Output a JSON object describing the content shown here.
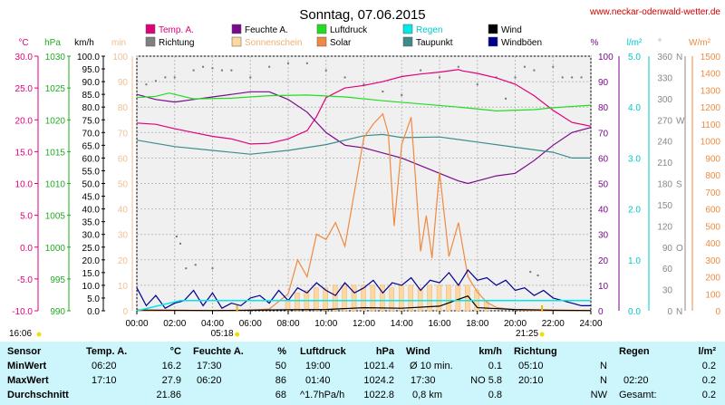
{
  "header": {
    "title": "Sonntag, 07.06.2015",
    "url": "www.neckar-odenwald-wetter.de"
  },
  "legend": [
    {
      "label": "Temp. A.",
      "color": "#e0007a"
    },
    {
      "label": "Feuchte A.",
      "color": "#7a0a8c"
    },
    {
      "label": "Luftdruck",
      "color": "#22dd22"
    },
    {
      "label": "Regen",
      "color": "#00e8e8"
    },
    {
      "label": "Wind",
      "color": "#000000"
    },
    {
      "label": "Richtung",
      "color": "#808080"
    },
    {
      "label": "Sonnenschein",
      "color": "#ffd8a0"
    },
    {
      "label": "Solar",
      "color": "#f08a40"
    },
    {
      "label": "Taupunkt",
      "color": "#3c8c8c"
    },
    {
      "label": "Windböen",
      "color": "#000090"
    }
  ],
  "axis_units": {
    "temp": "°C",
    "press": "hPa",
    "wind": "km/h",
    "sun": "min",
    "hum": "%",
    "rain": "l/m²",
    "dir": "°",
    "solar": "W/m²"
  },
  "axes": {
    "temp": [
      "-10.0",
      "-5.0",
      "0.0",
      "5.0",
      "10.0",
      "15.0",
      "20.0",
      "25.0",
      "30.0"
    ],
    "press": [
      "990",
      "995",
      "1000",
      "1005",
      "1010",
      "1015",
      "1020",
      "1025",
      "1030"
    ],
    "wind": [
      "0.0",
      "5.0",
      "10.0",
      "15.0",
      "20.0",
      "25.0",
      "30.0",
      "35.0",
      "40.0",
      "45.0",
      "50.0",
      "55.0",
      "60.0",
      "65.0",
      "70.0",
      "75.0",
      "80.0",
      "85.0",
      "90.0",
      "95.0",
      "100.0"
    ],
    "sun": [
      "0",
      "10",
      "20",
      "30",
      "40",
      "50",
      "60",
      "70",
      "80",
      "90",
      "100"
    ],
    "hum": [
      "0",
      "10",
      "20",
      "30",
      "40",
      "50",
      "60",
      "70",
      "80",
      "90",
      "100"
    ],
    "rain": [
      "0.0",
      "1.0",
      "2.0",
      "3.0",
      "4.0",
      "5.0"
    ],
    "dir": [
      "0",
      "30",
      "60",
      "90",
      "120",
      "150",
      "180",
      "210",
      "240",
      "270",
      "300",
      "330",
      "360"
    ],
    "dir_compass": {
      "0": "N",
      "90": "O",
      "180": "S",
      "270": "W",
      "360": "N"
    },
    "solar": [
      "0",
      "100",
      "200",
      "300",
      "400",
      "500",
      "600",
      "700",
      "800",
      "900",
      "1000",
      "1100",
      "1200",
      "1300",
      "1400",
      "1500"
    ]
  },
  "x_ticks": [
    "00:00",
    "02:00",
    "04:00",
    "06:00",
    "08:00",
    "10:00",
    "12:00",
    "14:00",
    "16:00",
    "18:00",
    "20:00",
    "22:00",
    "24:00"
  ],
  "markers": {
    "left": "16:06",
    "sunrise": "05:18",
    "sunset": "21:25"
  },
  "stats": {
    "header": {
      "sensor": "Sensor",
      "temp": "Temp. A.",
      "temp_u": "°C",
      "hum": "Feuchte A.",
      "hum_u": "%",
      "press": "Luftdruck",
      "press_u": "hPa",
      "wind": "Wind",
      "wind_u": "km/h",
      "dir": "Richtung",
      "rain": "Regen",
      "rain_u": "l/m²"
    },
    "min": {
      "label": "MinWert",
      "temp_t": "06:20",
      "temp_v": "16.2",
      "hum_t": "17:30",
      "hum_v": "50",
      "press_t": "19:00",
      "press_v": "1021.4",
      "wind_t": "Ø 10 min.",
      "wind_v": "0.1",
      "dir_t": "05:10",
      "dir_v": "N",
      "rain_t": "",
      "rain_v": "0.2"
    },
    "max": {
      "label": "MaxWert",
      "temp_t": "17:10",
      "temp_v": "27.9",
      "hum_t": "06:20",
      "hum_v": "86",
      "press_t": "01:40",
      "press_v": "1024.2",
      "wind_t": "17:30",
      "wind_v": "NO 5.8",
      "dir_t": "20:10",
      "dir_v": "N",
      "rain_t": "02:20",
      "rain_v": "0.2"
    },
    "avg": {
      "label": "Durchschnitt",
      "temp_v": "21.86",
      "hum_v": "68",
      "press_t": "^1.7hPa/h",
      "press_v": "1022.8",
      "wind_t": "0,8 km",
      "wind_v": "0.8",
      "dir_v": "NW",
      "rain_t": "Gesamt:",
      "rain_v": "0.2"
    }
  },
  "chart_data": {
    "type": "line",
    "x_unit": "hours",
    "x_range": [
      0,
      24
    ],
    "series": [
      {
        "name": "Temp. A.",
        "axis": "temp",
        "color": "#e0007a",
        "x": [
          0,
          1,
          2,
          3,
          4,
          5,
          6,
          7,
          8,
          9,
          9.5,
          10,
          11,
          12,
          13,
          14,
          15,
          16,
          17,
          17.2,
          18,
          19,
          20,
          21,
          22,
          23,
          24
        ],
        "y": [
          19.5,
          19.3,
          18.6,
          18.0,
          17.4,
          17.0,
          16.2,
          16.3,
          17.0,
          18.3,
          20.5,
          23.5,
          25.0,
          25.4,
          26.0,
          26.8,
          27.2,
          27.5,
          27.9,
          27.7,
          27.3,
          26.6,
          25.6,
          23.8,
          21.5,
          19.6,
          19.0
        ]
      },
      {
        "name": "Feuchte A.",
        "axis": "hum",
        "color": "#7a0a8c",
        "x": [
          0,
          1,
          2,
          3,
          4,
          5,
          6,
          7,
          8,
          9,
          9.5,
          10,
          11,
          12,
          13,
          14,
          15,
          16,
          17,
          17.5,
          18,
          19,
          20,
          21,
          22,
          23,
          24
        ],
        "y": [
          85,
          83,
          82,
          83,
          84,
          85,
          86,
          86,
          83,
          78,
          74,
          70,
          65,
          64,
          62,
          60,
          57,
          54,
          51,
          50,
          51,
          53,
          54,
          59,
          65,
          70,
          72
        ]
      },
      {
        "name": "Luftdruck",
        "axis": "press",
        "color": "#22dd22",
        "x": [
          0,
          1,
          1.7,
          3,
          5,
          7,
          9,
          11,
          13,
          15,
          17,
          19,
          21,
          22,
          24
        ],
        "y": [
          1023.5,
          1023.7,
          1024.2,
          1023.3,
          1023.4,
          1023.8,
          1023.9,
          1023.6,
          1023.0,
          1022.5,
          1022.0,
          1021.4,
          1021.6,
          1021.9,
          1022.3
        ]
      },
      {
        "name": "Taupunkt",
        "axis": "temp",
        "color": "#3c8c8c",
        "x": [
          0,
          2,
          4,
          6,
          8,
          10,
          12,
          13,
          14,
          16,
          18,
          20,
          22,
          23,
          24
        ],
        "y": [
          16.8,
          15.8,
          15.2,
          14.6,
          15.2,
          16.1,
          17.5,
          17.7,
          17.2,
          17.3,
          16.5,
          15.7,
          14.9,
          14.0,
          14.0
        ]
      },
      {
        "name": "Solar",
        "axis": "solar",
        "color": "#f08a40",
        "x": [
          0,
          5.3,
          7,
          8,
          8.5,
          9,
          9.5,
          10,
          10.5,
          11,
          11.5,
          12,
          12.5,
          13,
          13.3,
          13.6,
          14,
          14.5,
          15,
          15.3,
          15.6,
          16,
          16.5,
          17,
          17.5,
          18,
          18.5,
          19,
          20,
          21.4,
          24
        ],
        "y": [
          0,
          0,
          10,
          100,
          300,
          200,
          450,
          420,
          520,
          380,
          700,
          1020,
          1100,
          1160,
          1040,
          500,
          980,
          1140,
          350,
          560,
          310,
          820,
          320,
          520,
          200,
          110,
          50,
          20,
          5,
          0,
          0
        ]
      },
      {
        "name": "Wind",
        "axis": "wind",
        "color": "#000000",
        "x": [
          0,
          4,
          6,
          8,
          10,
          12,
          14,
          16,
          17.5,
          18,
          20,
          22,
          24
        ],
        "y": [
          0.3,
          0.1,
          0.2,
          0.4,
          0.5,
          1.2,
          1.0,
          1.8,
          5.8,
          1.2,
          0.5,
          0.2,
          0.1
        ]
      },
      {
        "name": "Windböen",
        "axis": "wind",
        "color": "#000090",
        "x": [
          0,
          0.5,
          1,
          1.5,
          2,
          2.5,
          3,
          3.5,
          4,
          4.5,
          5,
          5.5,
          6,
          6.5,
          7,
          7.5,
          8,
          8.5,
          9,
          9.5,
          10,
          10.5,
          11,
          11.5,
          12,
          12.5,
          13,
          13.5,
          14,
          14.5,
          15,
          15.5,
          16,
          16.5,
          17,
          17.5,
          18,
          18.5,
          19,
          19.5,
          20,
          20.5,
          21,
          21.5,
          22,
          22.5,
          23,
          23.5,
          24
        ],
        "y": [
          9,
          2,
          6,
          1,
          3,
          4,
          8,
          2,
          7,
          1,
          3,
          2,
          5,
          6,
          3,
          8,
          4,
          9,
          7,
          11,
          8,
          6,
          11,
          7,
          9,
          12,
          7,
          11,
          10,
          13,
          8,
          12,
          11,
          15,
          10,
          16,
          12,
          13,
          10,
          12,
          8,
          9,
          6,
          8,
          5,
          4,
          3,
          2,
          2
        ]
      },
      {
        "name": "Regen",
        "axis": "rain",
        "color": "#00e8e8",
        "x": [
          0,
          2.3,
          24
        ],
        "y": [
          0,
          0.2,
          0.2
        ]
      }
    ],
    "sunshine": {
      "name": "Sonnenschein",
      "axis": "sun",
      "x": [
        8,
        8.5,
        9,
        9.5,
        10,
        10.5,
        11,
        11.5,
        12,
        12.5,
        13,
        13.5,
        14,
        14.5,
        15,
        15.5,
        16,
        16.5,
        17,
        17.5,
        18,
        18.5
      ],
      "y": [
        4,
        7,
        8,
        9,
        9,
        10,
        10,
        10,
        10,
        10,
        10,
        9,
        10,
        10,
        9,
        10,
        10,
        10,
        10,
        10,
        8,
        4
      ]
    },
    "direction": {
      "name": "Richtung",
      "axis": "dir",
      "x": [
        0,
        0.5,
        1,
        1.5,
        2,
        3,
        3.5,
        4,
        4.5,
        5,
        6,
        7,
        8,
        9,
        10,
        11,
        12,
        13,
        14,
        15,
        16,
        17,
        18,
        19,
        19.5,
        20,
        20.5,
        21,
        22,
        22.5,
        23,
        23.5,
        24
      ],
      "y": [
        325,
        320,
        325,
        330,
        330,
        340,
        345,
        343,
        340,
        340,
        330,
        345,
        350,
        350,
        340,
        330,
        320,
        310,
        305,
        340,
        330,
        345,
        320,
        330,
        300,
        330,
        345,
        340,
        345,
        330,
        330,
        330,
        330
      ]
    },
    "scatter_dir_low": {
      "x": [
        2.1,
        2.3,
        2.6,
        3.1,
        4.0,
        20.8,
        21.2
      ],
      "y": [
        105,
        95,
        60,
        65,
        60,
        55,
        50
      ]
    }
  }
}
